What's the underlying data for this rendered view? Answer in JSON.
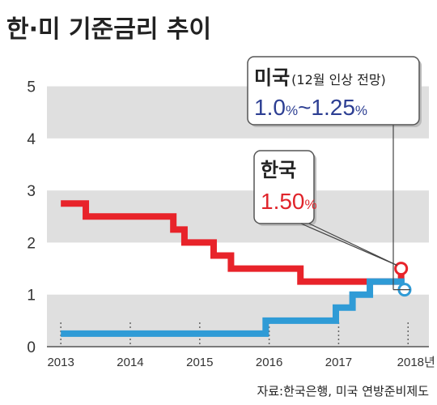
{
  "chart_data": {
    "type": "line",
    "title": "한·미 기준금리 추이",
    "source": "자료:한국은행, 미국 연방준비제도",
    "x_tick_labels": [
      "2013",
      "2014",
      "2015",
      "2016",
      "2017",
      "2018년"
    ],
    "x_tick_years": [
      2013,
      2014,
      2015,
      2016,
      2017,
      2018
    ],
    "y_ticks": [
      0,
      1,
      2,
      3,
      4,
      5
    ],
    "xlim": [
      2012.8,
      2018.3
    ],
    "ylim": [
      0,
      5.6
    ],
    "grid": "alternating horizontal bands",
    "colors": {
      "korea": "#e8232a",
      "us": "#2f9bd6",
      "band": "#dfdfdf",
      "us_text": "#2d3f93"
    },
    "series": [
      {
        "name": "한국",
        "key": "korea",
        "step": [
          [
            2013.0,
            2.75
          ],
          [
            2013.36,
            2.5
          ],
          [
            2014.62,
            2.25
          ],
          [
            2014.78,
            2.0
          ],
          [
            2015.2,
            1.75
          ],
          [
            2015.45,
            1.5
          ],
          [
            2016.45,
            1.25
          ],
          [
            2017.9,
            1.5
          ]
        ]
      },
      {
        "name": "미국",
        "key": "us",
        "step": [
          [
            2013.0,
            0.25
          ],
          [
            2015.95,
            0.5
          ],
          [
            2016.96,
            0.75
          ],
          [
            2017.2,
            1.0
          ],
          [
            2017.45,
            1.25
          ],
          [
            2017.95,
            1.25
          ]
        ]
      }
    ],
    "annotations": {
      "us": {
        "label": "미국",
        "note": "(12월 인상 전망)",
        "value_parts": [
          "1.0",
          "%",
          "~",
          "1.25",
          "%"
        ],
        "point": [
          2017.95,
          1.25
        ]
      },
      "korea": {
        "label": "한국",
        "value_parts": [
          "1.50",
          "%"
        ],
        "point": [
          2017.9,
          1.5
        ]
      }
    }
  }
}
